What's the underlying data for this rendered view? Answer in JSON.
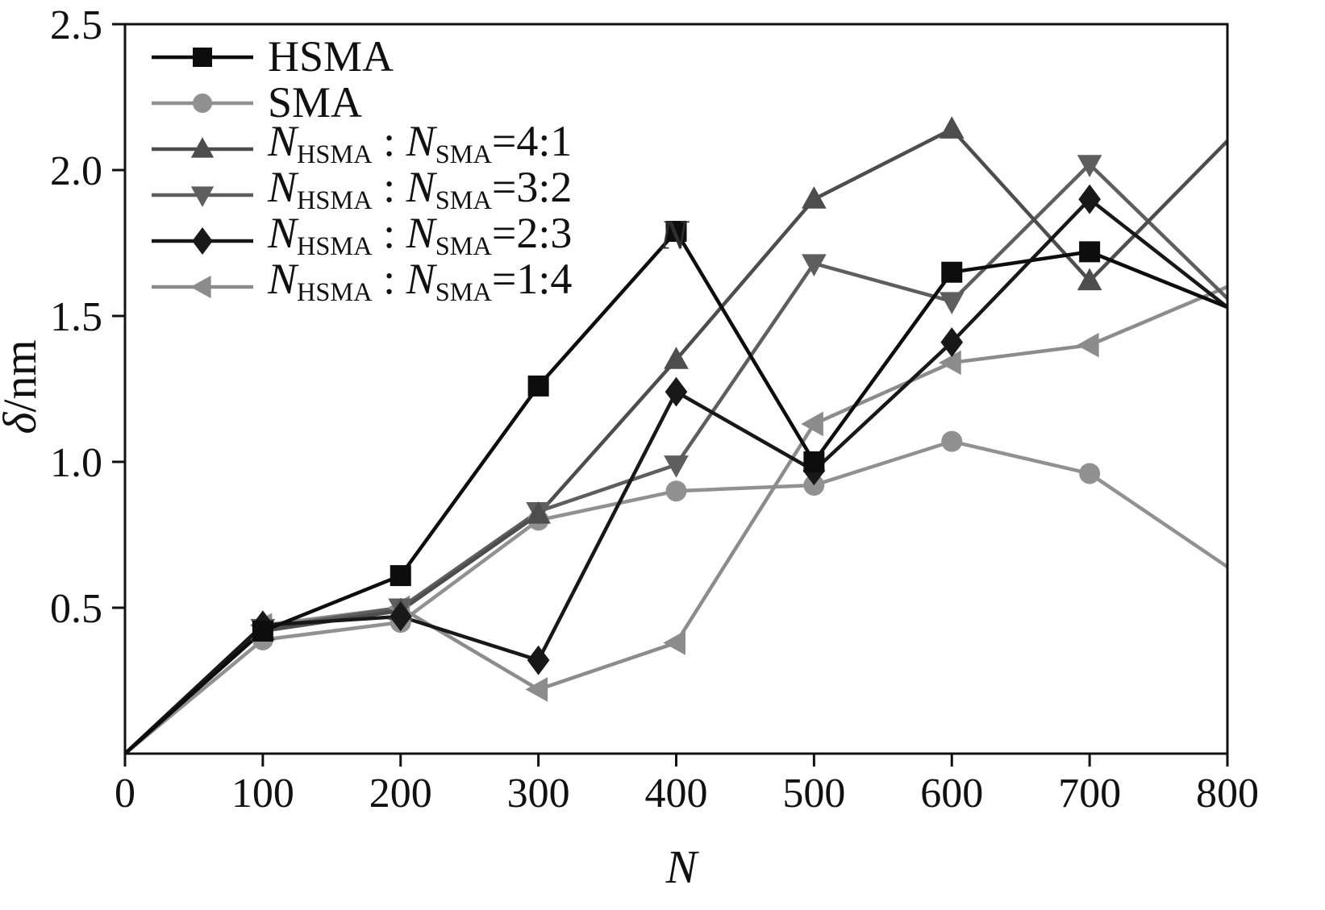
{
  "chart_data": {
    "type": "line",
    "title": "",
    "xlabel": "N",
    "ylabel": "δ/nm",
    "ylabel_sym": "δ",
    "ylabel_unit": "/nm",
    "xlim": [
      0,
      800
    ],
    "ylim": [
      0,
      2.5
    ],
    "xticks": [
      0,
      100,
      200,
      300,
      400,
      500,
      600,
      700,
      800
    ],
    "xtick_labels": [
      "0",
      "100",
      "200",
      "300",
      "400",
      "500",
      "600",
      "700",
      "800"
    ],
    "yticks": [
      0.5,
      1.0,
      1.5,
      2.0,
      2.5
    ],
    "ytick_labels": [
      "0.5",
      "1.0",
      "1.5",
      "2.0",
      "2.5"
    ],
    "grid": false,
    "frame_color": "#111111",
    "legend_position": "top-left",
    "x": [
      0,
      100,
      200,
      300,
      400,
      500,
      600,
      700,
      800
    ],
    "series": [
      {
        "name": "HSMA",
        "label": "HSMA",
        "label_rich": [
          {
            "t": "HSMA"
          }
        ],
        "marker": "square",
        "color": "#0d0d0d",
        "values": [
          0,
          0.42,
          0.61,
          1.26,
          1.79,
          1.0,
          1.65,
          1.72,
          1.53
        ]
      },
      {
        "name": "SMA",
        "label": "SMA",
        "label_rich": [
          {
            "t": "SMA"
          }
        ],
        "marker": "circle",
        "color": "#919191",
        "values": [
          0,
          0.39,
          0.45,
          0.8,
          0.9,
          0.92,
          1.07,
          0.96,
          0.64
        ]
      },
      {
        "name": "NHSMA:NSMA=4:1",
        "label": "N_HSMA : N_SMA=4:1",
        "label_rich": [
          {
            "t": "N",
            "style": "italic"
          },
          {
            "t": "HSMA",
            "style": "sub"
          },
          {
            "t": " : "
          },
          {
            "t": "N",
            "style": "italic"
          },
          {
            "t": "SMA",
            "style": "sub"
          },
          {
            "t": "=4:1"
          }
        ],
        "marker": "triangle-up",
        "color": "#4d4d4d",
        "values": [
          0,
          0.42,
          0.49,
          0.82,
          1.35,
          1.9,
          2.14,
          1.62,
          2.1
        ]
      },
      {
        "name": "NHSMA:NSMA=3:2",
        "label": "N_HSMA : N_SMA=3:2",
        "label_rich": [
          {
            "t": "N",
            "style": "italic"
          },
          {
            "t": "HSMA",
            "style": "sub"
          },
          {
            "t": " : "
          },
          {
            "t": "N",
            "style": "italic"
          },
          {
            "t": "SMA",
            "style": "sub"
          },
          {
            "t": "=3:2"
          }
        ],
        "marker": "triangle-down",
        "color": "#5e5e5e",
        "values": [
          0,
          0.43,
          0.5,
          0.83,
          0.99,
          1.68,
          1.55,
          2.02,
          1.56
        ]
      },
      {
        "name": "NHSMA:NSMA=2:3",
        "label": "N_HSMA : N_SMA=2:3",
        "label_rich": [
          {
            "t": "N",
            "style": "italic"
          },
          {
            "t": "HSMA",
            "style": "sub"
          },
          {
            "t": " : "
          },
          {
            "t": "N",
            "style": "italic"
          },
          {
            "t": "SMA",
            "style": "sub"
          },
          {
            "t": "=2:3"
          }
        ],
        "marker": "diamond",
        "color": "#181818",
        "values": [
          0,
          0.44,
          0.47,
          0.32,
          1.24,
          0.97,
          1.41,
          1.9,
          1.53
        ]
      },
      {
        "name": "NHSMA:NSMA=1:4",
        "label": "N_HSMA : N_SMA=1:4",
        "label_rich": [
          {
            "t": "N",
            "style": "italic"
          },
          {
            "t": "HSMA",
            "style": "sub"
          },
          {
            "t": " : "
          },
          {
            "t": "N",
            "style": "italic"
          },
          {
            "t": "SMA",
            "style": "sub"
          },
          {
            "t": "=1:4"
          }
        ],
        "marker": "triangle-left",
        "color": "#8c8c8c",
        "values": [
          0,
          0.44,
          0.5,
          0.22,
          0.38,
          1.13,
          1.34,
          1.4,
          1.6
        ]
      }
    ],
    "annotations": [
      {
        "text": "N",
        "x": 388,
        "y": 1.78
      }
    ]
  }
}
